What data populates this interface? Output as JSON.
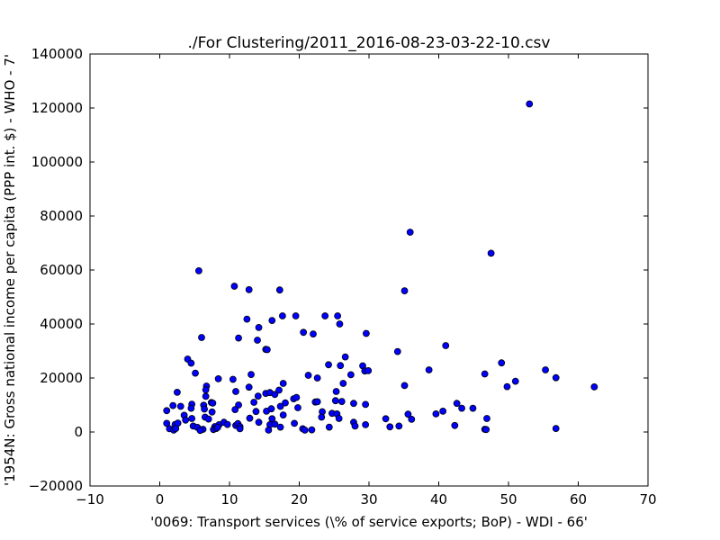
{
  "chart_data": {
    "type": "scatter",
    "title": "./For Clustering/2011_2016-08-23-03-22-10.csv",
    "xlabel": "'0069: Transport services  (\\% of service exports; BoP) - WDI - 66'",
    "ylabel": "'1954N: Gross national income per capita (PPP int. $) - WHO - 7'",
    "xlim": [
      -10,
      70
    ],
    "ylim": [
      -20000,
      140000
    ],
    "x_ticks": [
      -10,
      0,
      10,
      20,
      30,
      40,
      50,
      60,
      70
    ],
    "y_ticks": [
      -20000,
      0,
      20000,
      40000,
      60000,
      80000,
      100000,
      120000,
      140000
    ],
    "x_tick_labels": [
      "−10",
      "0",
      "10",
      "20",
      "30",
      "40",
      "50",
      "60",
      "70"
    ],
    "y_tick_labels": [
      "−20000",
      "0",
      "20000",
      "40000",
      "60000",
      "80000",
      "100000",
      "120000",
      "140000"
    ],
    "grid": false,
    "marker_color": "#0000ff",
    "marker_edge": "#000000",
    "points": [
      [
        53.0,
        121500
      ],
      [
        35.9,
        74000
      ],
      [
        47.5,
        66200
      ],
      [
        5.6,
        59700
      ],
      [
        10.7,
        54000
      ],
      [
        12.8,
        52700
      ],
      [
        17.2,
        52600
      ],
      [
        35.1,
        52300
      ],
      [
        17.6,
        43000
      ],
      [
        19.5,
        43000
      ],
      [
        23.7,
        43000
      ],
      [
        25.5,
        43000
      ],
      [
        12.5,
        41800
      ],
      [
        16.1,
        41300
      ],
      [
        25.8,
        40000
      ],
      [
        14.2,
        38700
      ],
      [
        6.0,
        35000
      ],
      [
        11.3,
        34800
      ],
      [
        20.6,
        36900
      ],
      [
        22.0,
        36300
      ],
      [
        29.6,
        36500
      ],
      [
        14.0,
        34000
      ],
      [
        15.2,
        30600
      ],
      [
        15.4,
        30500
      ],
      [
        34.1,
        29800
      ],
      [
        41.0,
        32000
      ],
      [
        4.0,
        27000
      ],
      [
        4.5,
        25500
      ],
      [
        26.6,
        27800
      ],
      [
        24.2,
        24900
      ],
      [
        25.9,
        24600
      ],
      [
        29.1,
        24500
      ],
      [
        49.0,
        25600
      ],
      [
        5.1,
        21800
      ],
      [
        13.1,
        21300
      ],
      [
        21.3,
        21000
      ],
      [
        22.6,
        20000
      ],
      [
        27.4,
        21200
      ],
      [
        29.4,
        22600
      ],
      [
        29.9,
        22700
      ],
      [
        38.6,
        23000
      ],
      [
        46.6,
        21500
      ],
      [
        55.3,
        23000
      ],
      [
        8.4,
        19700
      ],
      [
        10.5,
        19500
      ],
      [
        17.7,
        18000
      ],
      [
        26.3,
        18000
      ],
      [
        35.1,
        17200
      ],
      [
        51.0,
        18800
      ],
      [
        49.8,
        16800
      ],
      [
        56.8,
        20100
      ],
      [
        62.3,
        16700
      ],
      [
        6.7,
        17000
      ],
      [
        6.6,
        15600
      ],
      [
        12.8,
        16600
      ],
      [
        10.9,
        15000
      ],
      [
        15.2,
        14300
      ],
      [
        15.8,
        14600
      ],
      [
        16.5,
        13900
      ],
      [
        17.1,
        15500
      ],
      [
        25.3,
        15000
      ],
      [
        6.6,
        13200
      ],
      [
        14.1,
        13300
      ],
      [
        19.2,
        12300
      ],
      [
        19.6,
        12800
      ],
      [
        2.5,
        14700
      ],
      [
        1.9,
        9800
      ],
      [
        3.0,
        9500
      ],
      [
        4.6,
        10300
      ],
      [
        7.4,
        10900
      ],
      [
        7.6,
        10700
      ],
      [
        6.3,
        9900
      ],
      [
        11.3,
        10000
      ],
      [
        13.5,
        11000
      ],
      [
        18.0,
        10800
      ],
      [
        22.3,
        11100
      ],
      [
        22.6,
        11200
      ],
      [
        25.2,
        11600
      ],
      [
        26.1,
        11300
      ],
      [
        27.8,
        10600
      ],
      [
        29.5,
        10200
      ],
      [
        42.6,
        10600
      ],
      [
        43.3,
        8800
      ],
      [
        44.9,
        8800
      ],
      [
        40.6,
        7700
      ],
      [
        1.0,
        7900
      ],
      [
        4.5,
        8800
      ],
      [
        6.4,
        8500
      ],
      [
        7.5,
        7400
      ],
      [
        10.8,
        8300
      ],
      [
        13.8,
        7600
      ],
      [
        15.3,
        7700
      ],
      [
        16.0,
        8600
      ],
      [
        17.3,
        9500
      ],
      [
        19.8,
        9000
      ],
      [
        23.3,
        7500
      ],
      [
        24.7,
        6900
      ],
      [
        25.4,
        6700
      ],
      [
        35.6,
        6600
      ],
      [
        39.6,
        6700
      ],
      [
        3.5,
        6200
      ],
      [
        3.7,
        4400
      ],
      [
        4.6,
        5000
      ],
      [
        6.5,
        5500
      ],
      [
        7.0,
        4800
      ],
      [
        12.9,
        5100
      ],
      [
        16.1,
        4900
      ],
      [
        17.7,
        6300
      ],
      [
        23.2,
        5500
      ],
      [
        25.7,
        5000
      ],
      [
        32.4,
        4900
      ],
      [
        36.1,
        4700
      ],
      [
        46.9,
        5000
      ],
      [
        1.0,
        3200
      ],
      [
        2.2,
        2800
      ],
      [
        2.6,
        3300
      ],
      [
        4.8,
        2200
      ],
      [
        5.4,
        1700
      ],
      [
        6.2,
        1000
      ],
      [
        7.9,
        2000
      ],
      [
        8.5,
        2700
      ],
      [
        9.2,
        3600
      ],
      [
        9.7,
        2800
      ],
      [
        10.9,
        2400
      ],
      [
        11.2,
        3100
      ],
      [
        11.5,
        2000
      ],
      [
        14.2,
        3600
      ],
      [
        15.8,
        2700
      ],
      [
        16.5,
        2900
      ],
      [
        17.3,
        1800
      ],
      [
        19.3,
        3200
      ],
      [
        20.5,
        1200
      ],
      [
        21.8,
        800
      ],
      [
        24.3,
        1800
      ],
      [
        27.8,
        3600
      ],
      [
        28.0,
        2200
      ],
      [
        29.5,
        2700
      ],
      [
        33.0,
        1900
      ],
      [
        34.3,
        2200
      ],
      [
        42.3,
        2400
      ],
      [
        1.4,
        1200
      ],
      [
        2.0,
        700
      ],
      [
        2.3,
        1300
      ],
      [
        5.8,
        600
      ],
      [
        7.7,
        900
      ],
      [
        8.1,
        1300
      ],
      [
        8.3,
        1700
      ],
      [
        11.5,
        1200
      ],
      [
        15.6,
        700
      ],
      [
        20.8,
        700
      ],
      [
        46.6,
        1000
      ],
      [
        46.8,
        900
      ],
      [
        56.8,
        1300
      ]
    ]
  }
}
